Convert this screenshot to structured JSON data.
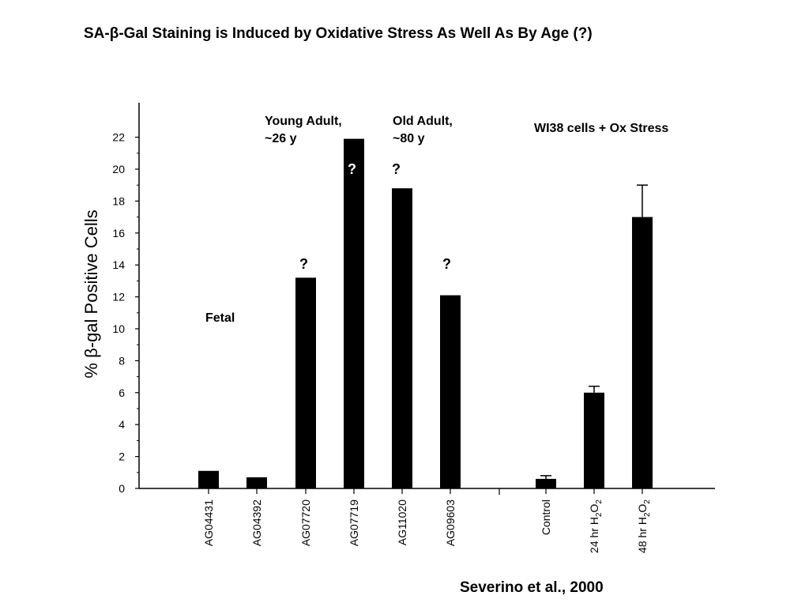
{
  "title": "SA-β-Gal Staining is Induced by Oxidative Stress As Well As By Age (?)",
  "citation": "Severino et al., 2000",
  "annotations": {
    "fetal": "Fetal",
    "young_adult_line1": "Young Adult,",
    "young_adult_line2": "~26 y",
    "old_adult_line1": "Old Adult,",
    "old_adult_line2": "~80 y",
    "wi38": "WI38 cells + Ox Stress",
    "question_mark": "?"
  },
  "chart_data": {
    "type": "bar",
    "ylabel_prefix": "% ",
    "ylabel_symbol": "β",
    "ylabel_rest": "-gal Positive Cells",
    "ylim": [
      0,
      23
    ],
    "yticks": [
      0,
      2,
      4,
      6,
      8,
      10,
      12,
      14,
      16,
      18,
      20,
      22
    ],
    "grid": false,
    "groups": [
      {
        "name": "",
        "categories": [
          "AG04431",
          "AG04392",
          "AG07720",
          "AG07719",
          "AG11020",
          "AG09603"
        ],
        "values": [
          1.1,
          0.7,
          13.2,
          21.9,
          18.8,
          12.1
        ]
      },
      {
        "name": "",
        "categories": [
          "Control",
          "24 hr H2O2",
          "48 hr H2O2"
        ],
        "values": [
          0.6,
          6.0,
          17.0
        ],
        "error_upper": [
          0.2,
          0.4,
          2.0
        ]
      }
    ]
  },
  "colors": {
    "bar": "#000000",
    "axis": "#000000",
    "question_mark": "#000000"
  }
}
